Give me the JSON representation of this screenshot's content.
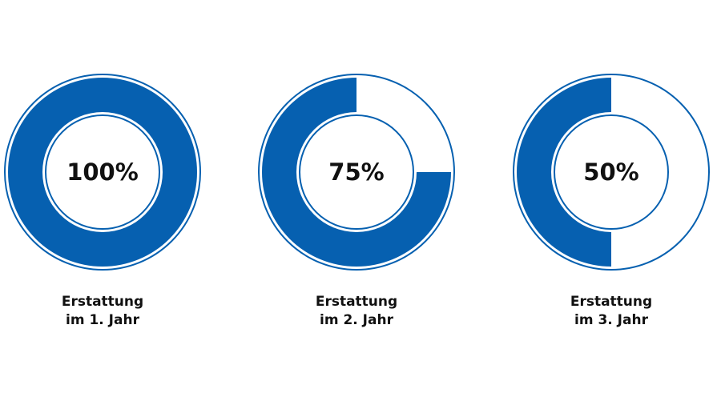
{
  "colors": {
    "fill": "#0660b0",
    "outline": "#0660b0",
    "background": "#ffffff",
    "text": "#111111"
  },
  "chart_data": [
    {
      "type": "pie",
      "values": [
        100
      ],
      "unit": "%",
      "center_label": "100%",
      "caption_line1": "Erstattung",
      "caption_line2": "im 1. Jahr"
    },
    {
      "type": "pie",
      "values": [
        75
      ],
      "unit": "%",
      "center_label": "75%",
      "caption_line1": "Erstattung",
      "caption_line2": "im 2. Jahr"
    },
    {
      "type": "pie",
      "values": [
        50
      ],
      "unit": "%",
      "center_label": "50%",
      "caption_line1": "Erstattung",
      "caption_line2": "im 3. Jahr"
    }
  ]
}
